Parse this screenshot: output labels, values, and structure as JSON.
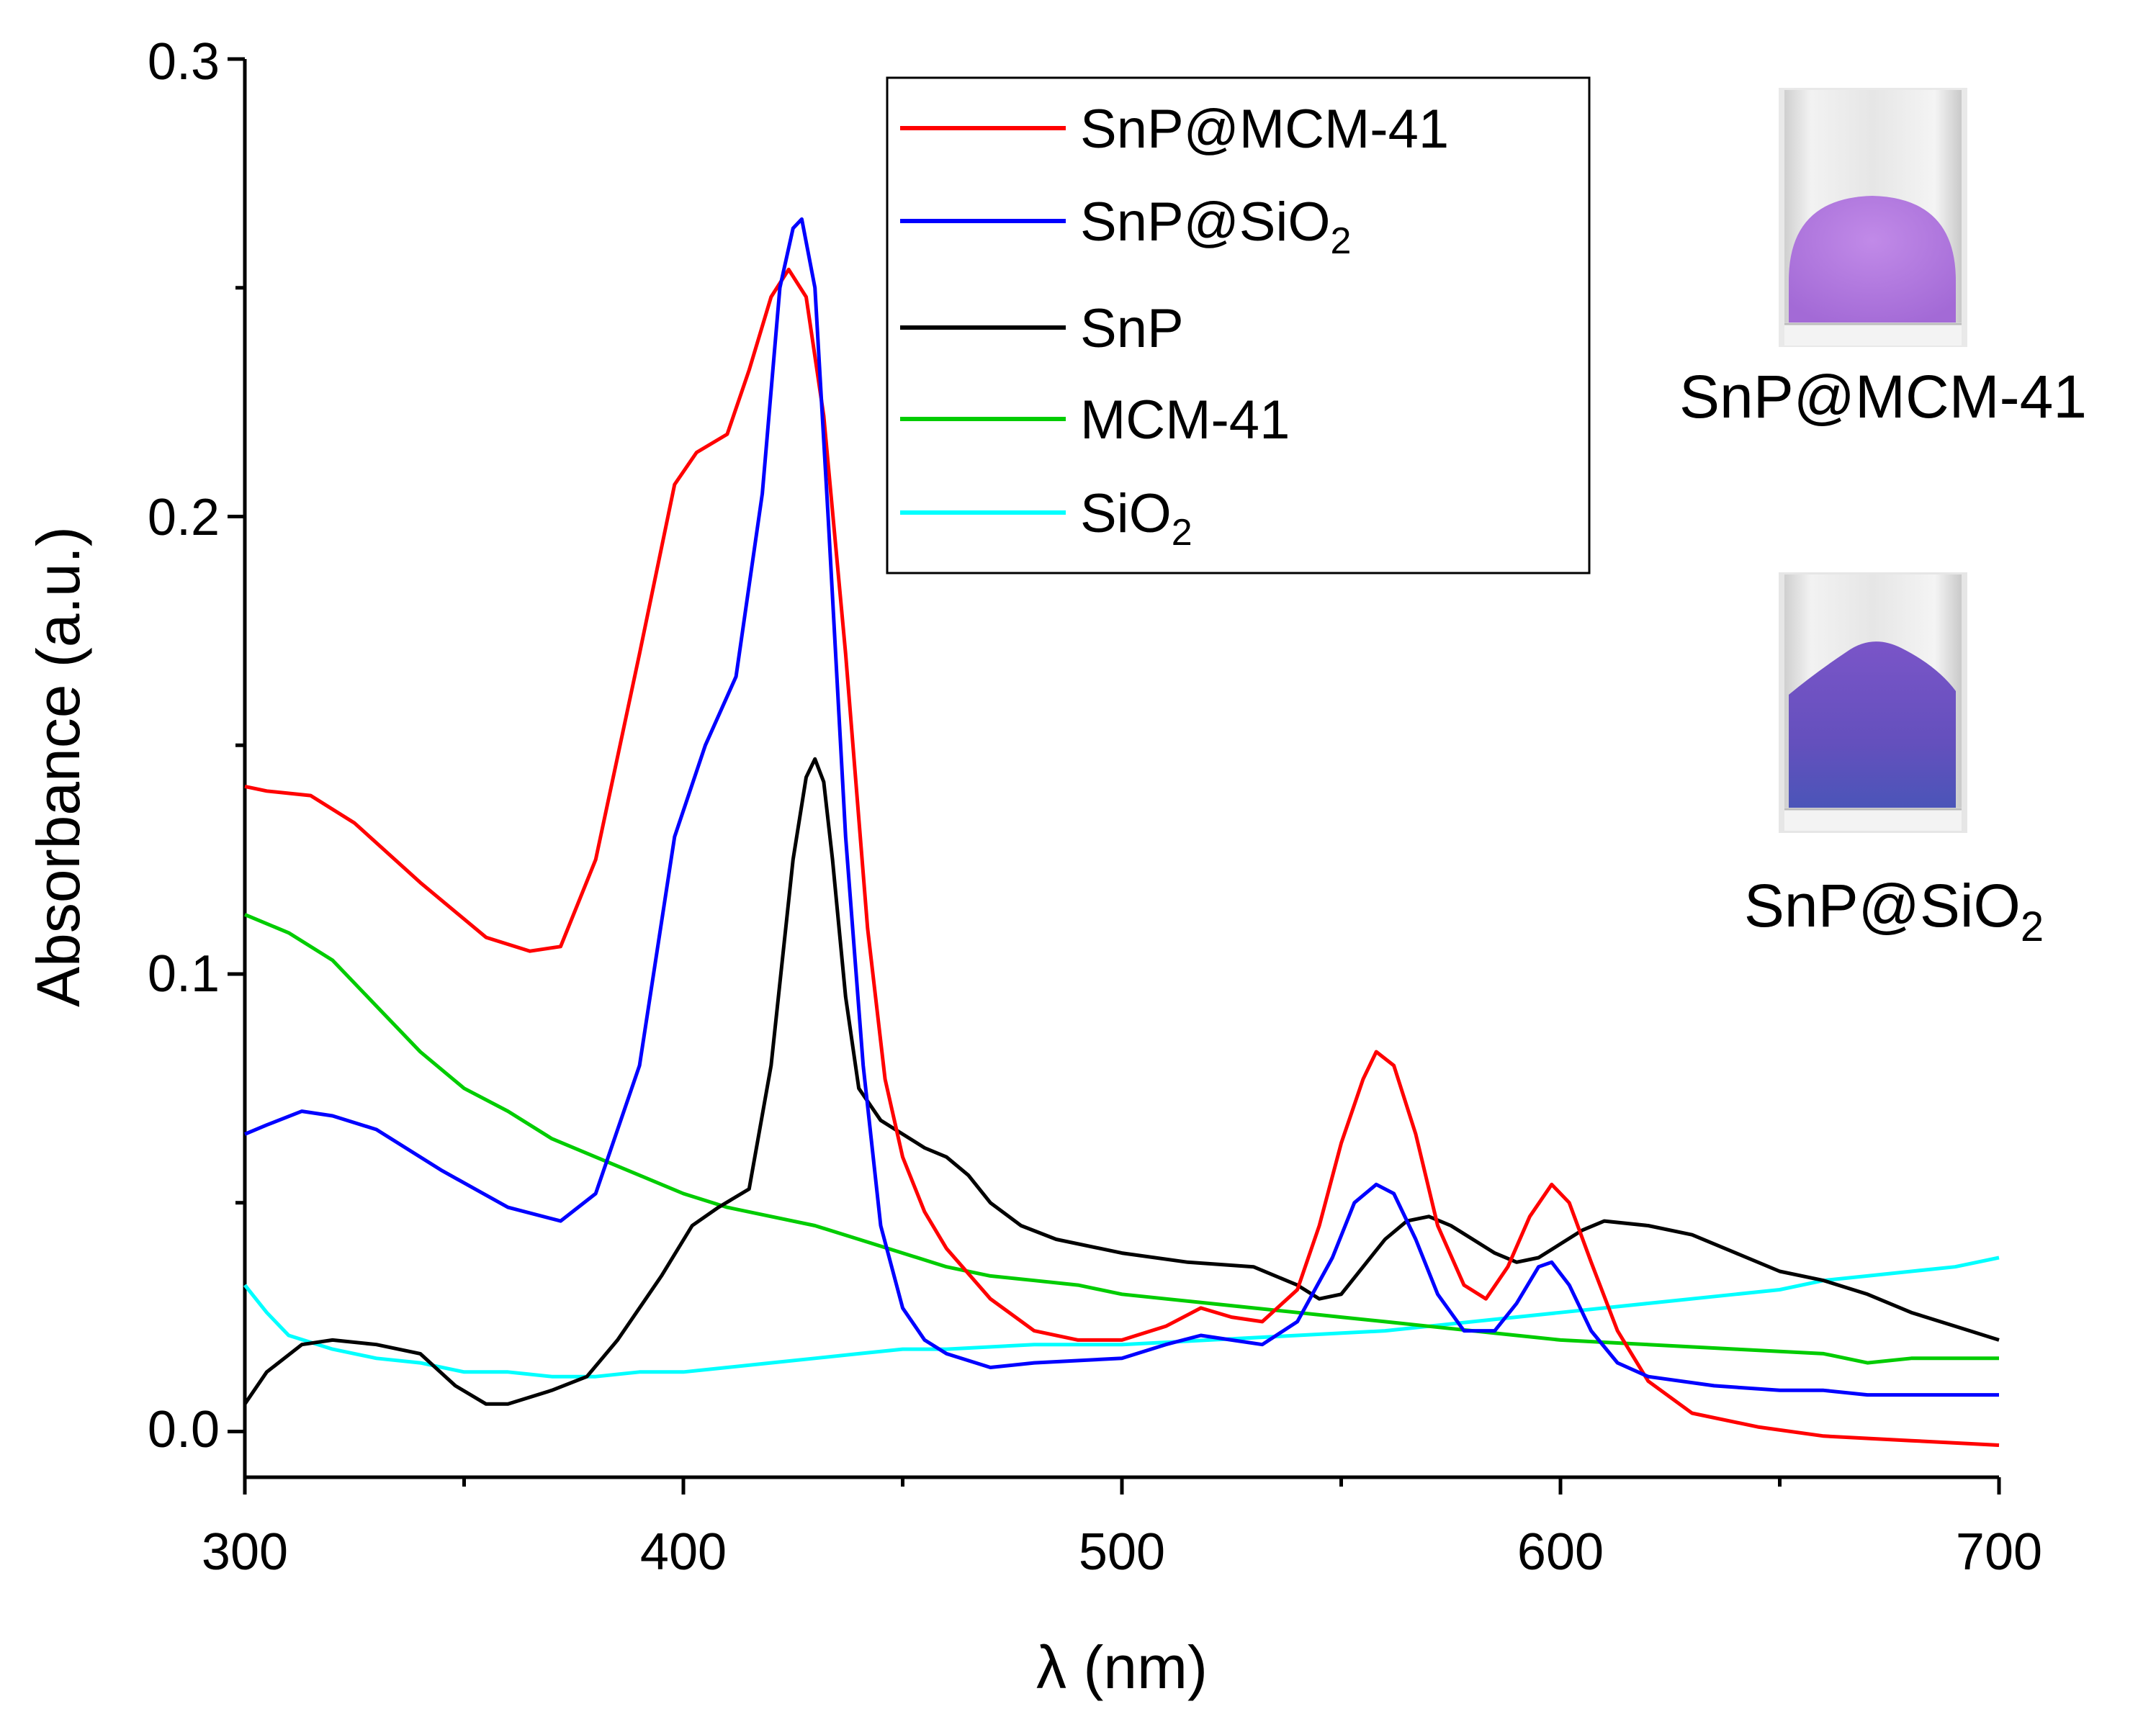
{
  "chart_data": {
    "type": "line",
    "title": "",
    "xlabel": "λ (nm)",
    "ylabel": "Absorbance (a.u.)",
    "xlim": [
      300,
      700
    ],
    "ylim": [
      -0.01,
      0.3
    ],
    "xticks": [
      300,
      400,
      500,
      600,
      700
    ],
    "xtick_labels": [
      "300",
      "400",
      "500",
      "600",
      "700"
    ],
    "yticks": [
      0.0,
      0.1,
      0.2,
      0.3
    ],
    "ytick_labels": [
      "0.0",
      "0.1",
      "0.2",
      "0.3"
    ],
    "grid": false,
    "legend_position": "top-center",
    "series": [
      {
        "name": "SnP@MCM-41",
        "name_base": "SnP@MCM-41",
        "name_sub": "",
        "color": "#ff0000",
        "x": [
          300,
          305,
          315,
          325,
          340,
          355,
          365,
          372,
          380,
          390,
          398,
          403,
          410,
          415,
          420,
          424,
          428,
          432,
          437,
          442,
          446,
          450,
          455,
          460,
          470,
          480,
          490,
          500,
          510,
          518,
          525,
          532,
          540,
          545,
          550,
          555,
          558,
          562,
          567,
          572,
          578,
          583,
          588,
          593,
          598,
          602,
          607,
          613,
          620,
          630,
          645,
          660,
          680,
          700
        ],
        "y": [
          0.141,
          0.14,
          0.139,
          0.133,
          0.12,
          0.108,
          0.105,
          0.106,
          0.125,
          0.17,
          0.207,
          0.214,
          0.218,
          0.232,
          0.248,
          0.254,
          0.248,
          0.222,
          0.17,
          0.11,
          0.077,
          0.06,
          0.048,
          0.04,
          0.029,
          0.022,
          0.02,
          0.02,
          0.023,
          0.027,
          0.025,
          0.024,
          0.031,
          0.045,
          0.063,
          0.077,
          0.083,
          0.08,
          0.065,
          0.045,
          0.032,
          0.029,
          0.036,
          0.047,
          0.054,
          0.05,
          0.037,
          0.022,
          0.011,
          0.004,
          0.001,
          -0.001,
          -0.002,
          -0.003
        ]
      },
      {
        "name": "SnP@SiO2",
        "name_base": "SnP@SiO",
        "name_sub": "2",
        "color": "#0000ff",
        "x": [
          300,
          305,
          313,
          320,
          330,
          345,
          360,
          372,
          380,
          390,
          398,
          405,
          412,
          418,
          422,
          425,
          427,
          430,
          433,
          437,
          441,
          445,
          450,
          455,
          460,
          470,
          480,
          500,
          510,
          518,
          525,
          532,
          540,
          548,
          553,
          558,
          562,
          567,
          572,
          578,
          585,
          590,
          595,
          598,
          602,
          607,
          613,
          620,
          635,
          650,
          660,
          670,
          700
        ],
        "y": [
          0.065,
          0.067,
          0.07,
          0.069,
          0.066,
          0.057,
          0.049,
          0.046,
          0.052,
          0.08,
          0.13,
          0.15,
          0.165,
          0.205,
          0.25,
          0.263,
          0.265,
          0.25,
          0.2,
          0.13,
          0.08,
          0.045,
          0.027,
          0.02,
          0.017,
          0.014,
          0.015,
          0.016,
          0.019,
          0.021,
          0.02,
          0.019,
          0.024,
          0.038,
          0.05,
          0.054,
          0.052,
          0.042,
          0.03,
          0.022,
          0.022,
          0.028,
          0.036,
          0.037,
          0.032,
          0.022,
          0.015,
          0.012,
          0.01,
          0.009,
          0.009,
          0.008,
          0.008
        ]
      },
      {
        "name": "SnP",
        "name_base": "SnP",
        "name_sub": "",
        "color": "#000000",
        "x": [
          300,
          305,
          313,
          320,
          330,
          340,
          348,
          355,
          360,
          370,
          378,
          385,
          395,
          402,
          408,
          415,
          420,
          425,
          428,
          430,
          432,
          434,
          437,
          440,
          445,
          450,
          455,
          460,
          465,
          470,
          477,
          485,
          500,
          515,
          530,
          540,
          545,
          550,
          555,
          560,
          565,
          570,
          575,
          580,
          585,
          590,
          595,
          600,
          605,
          610,
          620,
          630,
          640,
          650,
          660,
          670,
          680,
          690,
          700
        ],
        "y": [
          0.006,
          0.013,
          0.019,
          0.02,
          0.019,
          0.017,
          0.01,
          0.006,
          0.006,
          0.009,
          0.012,
          0.02,
          0.034,
          0.045,
          0.049,
          0.053,
          0.08,
          0.125,
          0.143,
          0.147,
          0.142,
          0.125,
          0.095,
          0.075,
          0.068,
          0.065,
          0.062,
          0.06,
          0.056,
          0.05,
          0.045,
          0.042,
          0.039,
          0.037,
          0.036,
          0.032,
          0.029,
          0.03,
          0.036,
          0.042,
          0.046,
          0.047,
          0.045,
          0.042,
          0.039,
          0.037,
          0.038,
          0.041,
          0.044,
          0.046,
          0.045,
          0.043,
          0.039,
          0.035,
          0.033,
          0.03,
          0.026,
          0.023,
          0.02
        ]
      },
      {
        "name": "MCM-41",
        "name_base": "MCM-41",
        "name_sub": "",
        "color": "#00cc00",
        "x": [
          300,
          310,
          320,
          330,
          340,
          350,
          360,
          370,
          380,
          390,
          400,
          410,
          420,
          430,
          440,
          450,
          460,
          470,
          480,
          490,
          500,
          510,
          520,
          530,
          540,
          550,
          560,
          570,
          580,
          590,
          600,
          620,
          640,
          660,
          670,
          680,
          690,
          700
        ],
        "y": [
          0.113,
          0.109,
          0.103,
          0.093,
          0.083,
          0.075,
          0.07,
          0.064,
          0.06,
          0.056,
          0.052,
          0.049,
          0.047,
          0.045,
          0.042,
          0.039,
          0.036,
          0.034,
          0.033,
          0.032,
          0.03,
          0.029,
          0.028,
          0.027,
          0.026,
          0.025,
          0.024,
          0.023,
          0.022,
          0.021,
          0.02,
          0.019,
          0.018,
          0.017,
          0.015,
          0.016,
          0.016,
          0.016
        ]
      },
      {
        "name": "SiO2",
        "name_base": "SiO",
        "name_sub": "2",
        "color": "#00ffff",
        "x": [
          300,
          305,
          310,
          320,
          330,
          340,
          350,
          360,
          370,
          380,
          390,
          400,
          410,
          420,
          430,
          440,
          450,
          460,
          480,
          500,
          520,
          540,
          560,
          580,
          600,
          620,
          640,
          650,
          660,
          670,
          680,
          690,
          700
        ],
        "y": [
          0.032,
          0.026,
          0.021,
          0.018,
          0.016,
          0.015,
          0.013,
          0.013,
          0.012,
          0.012,
          0.013,
          0.013,
          0.014,
          0.015,
          0.016,
          0.017,
          0.018,
          0.018,
          0.019,
          0.019,
          0.02,
          0.021,
          0.022,
          0.024,
          0.026,
          0.028,
          0.03,
          0.031,
          0.033,
          0.034,
          0.035,
          0.036,
          0.038
        ]
      }
    ]
  },
  "insets": [
    {
      "label_base": "SnP@MCM-41",
      "label_sub": "",
      "powder_color": "#b57ae0"
    },
    {
      "label_base": "SnP@SiO",
      "label_sub": "2",
      "powder_color": "#6a5ac8"
    }
  ]
}
